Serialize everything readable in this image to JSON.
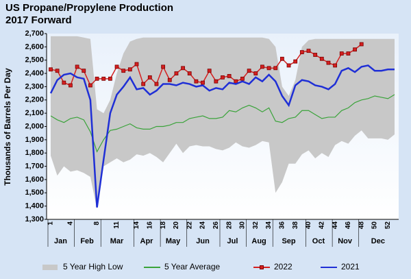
{
  "chart_data": {
    "type": "line",
    "title": "US Propane/Propylene Production",
    "subtitle": "2017 Forward",
    "y_label": "Thousands of Barrels Per Day",
    "categories": [
      1,
      null,
      null,
      4,
      null,
      null,
      null,
      8,
      null,
      null,
      11,
      null,
      null,
      14,
      null,
      16,
      null,
      18,
      null,
      20,
      null,
      22,
      null,
      24,
      null,
      26,
      null,
      28,
      null,
      30,
      null,
      32,
      null,
      34,
      null,
      36,
      null,
      38,
      null,
      40,
      null,
      42,
      null,
      44,
      null,
      46,
      null,
      48,
      null,
      50,
      null,
      52,
      null
    ],
    "months": [
      "Jan",
      "Feb",
      "Mar",
      "Apr",
      "May",
      "Jun",
      "Jul",
      "Aug",
      "Sep",
      "Oct",
      "Nov",
      "Dec"
    ],
    "ylim": [
      1300,
      2700
    ],
    "yticks": [
      {
        "value": 1300,
        "label": "1,300"
      },
      {
        "value": 1400,
        "label": "1,400"
      },
      {
        "value": 1500,
        "label": "1,500"
      },
      {
        "value": 1600,
        "label": "1,600"
      },
      {
        "value": 1700,
        "label": "1,700"
      },
      {
        "value": 1800,
        "label": "1,800"
      },
      {
        "value": 1900,
        "label": "1,900"
      },
      {
        "value": 2000,
        "label": "2,000"
      },
      {
        "value": 2100,
        "label": "2,100"
      },
      {
        "value": 2200,
        "label": "2,200"
      },
      {
        "value": 2300,
        "label": "2,300"
      },
      {
        "value": 2400,
        "label": "2,400"
      },
      {
        "value": 2500,
        "label": "2,500"
      },
      {
        "value": 2600,
        "label": "2,600"
      },
      {
        "value": 2700,
        "label": "2,700"
      }
    ],
    "series": [
      {
        "name": "5 Year High Low",
        "kind": "range",
        "color": "#c8c8c8",
        "high": [
          2680,
          2680,
          2680,
          2680,
          2680,
          2670,
          2660,
          2130,
          2100,
          2200,
          2400,
          2550,
          2640,
          2660,
          2670,
          2670,
          2670,
          2670,
          2670,
          2670,
          2670,
          2670,
          2670,
          2670,
          2670,
          2670,
          2670,
          2670,
          2670,
          2670,
          2670,
          2670,
          2670,
          2660,
          2600,
          2300,
          2230,
          2350,
          2600,
          2650,
          2660,
          2660,
          2660,
          2660,
          2660,
          2660,
          2660,
          2660,
          2660,
          2660,
          2660,
          2660,
          2660
        ],
        "low": [
          1780,
          1630,
          1700,
          1660,
          1670,
          1650,
          1620,
          1380,
          1700,
          1730,
          1760,
          1730,
          1750,
          1790,
          1780,
          1800,
          1770,
          1730,
          1800,
          1870,
          1800,
          1850,
          1860,
          1850,
          1850,
          1830,
          1820,
          1840,
          1880,
          1850,
          1840,
          1860,
          1890,
          1880,
          1500,
          1580,
          1720,
          1720,
          1790,
          1820,
          1760,
          1800,
          1770,
          1860,
          1890,
          1870,
          1930,
          1970,
          1910,
          1910,
          1910,
          1900,
          1940
        ]
      },
      {
        "name": "5 Year Average",
        "kind": "line",
        "color": "#3aa33a",
        "values": [
          2080,
          2050,
          2030,
          2060,
          2070,
          2050,
          1960,
          1810,
          1900,
          1970,
          1980,
          2000,
          2020,
          1990,
          1980,
          1980,
          2000,
          2000,
          2010,
          2030,
          2030,
          2060,
          2070,
          2080,
          2060,
          2060,
          2070,
          2120,
          2110,
          2140,
          2160,
          2140,
          2110,
          2140,
          2040,
          2030,
          2060,
          2070,
          2120,
          2120,
          2090,
          2060,
          2070,
          2070,
          2120,
          2140,
          2180,
          2200,
          2210,
          2230,
          2220,
          2210,
          2240
        ]
      },
      {
        "name": "2022",
        "kind": "marker-line",
        "color": "#d42020",
        "values": [
          2430,
          2420,
          2330,
          2310,
          2450,
          2420,
          2310,
          2360,
          2360,
          2360,
          2450,
          2420,
          2430,
          2470,
          2320,
          2370,
          2320,
          2450,
          2350,
          2400,
          2440,
          2400,
          2340,
          2330,
          2420,
          2340,
          2370,
          2380,
          2340,
          2360,
          2420,
          2400,
          2450,
          2440,
          2440,
          2510,
          2460,
          2490,
          2560,
          2570,
          2540,
          2510,
          2480,
          2460,
          2550,
          2550,
          2580,
          2620,
          null,
          null,
          null,
          null,
          null
        ]
      },
      {
        "name": "2021",
        "kind": "line",
        "color": "#1f2fd6",
        "values": [
          2250,
          2350,
          2390,
          2400,
          2370,
          2360,
          2200,
          1390,
          1750,
          2100,
          2240,
          2300,
          2370,
          2280,
          2290,
          2240,
          2270,
          2320,
          2320,
          2310,
          2330,
          2320,
          2300,
          2310,
          2270,
          2290,
          2280,
          2330,
          2320,
          2340,
          2320,
          2370,
          2340,
          2390,
          2340,
          2230,
          2160,
          2310,
          2350,
          2340,
          2310,
          2300,
          2280,
          2320,
          2420,
          2440,
          2410,
          2450,
          2460,
          2420,
          2420,
          2430,
          2430
        ]
      }
    ]
  }
}
